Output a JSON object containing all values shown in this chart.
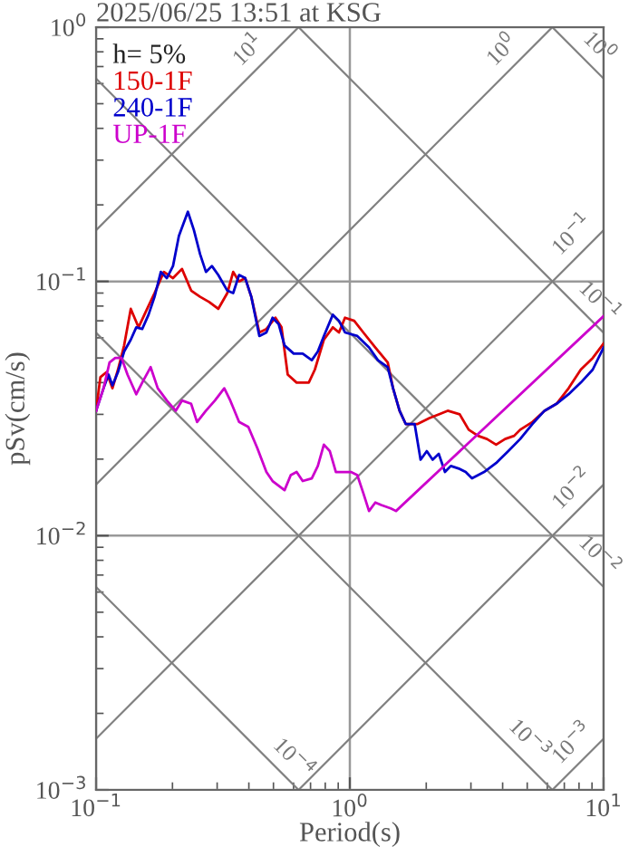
{
  "chart_data": {
    "type": "line",
    "title": "2025/06/25 13:51 at KSG",
    "xlabel": "Period(s)",
    "ylabel": "pSv(cm/s)",
    "legend_title": "h= 5%",
    "legend": "top left",
    "log": "xy",
    "grid": true,
    "xlim": [
      0.1,
      10
    ],
    "ylim": [
      0.001,
      1
    ],
    "xticks": [
      {
        "value": 0.1,
        "label": "10$^{−1}$"
      },
      {
        "value": 1,
        "label": "10$^{0}$"
      },
      {
        "value": 10,
        "label": "10$^{1}$"
      }
    ],
    "yticks": [
      {
        "value": 0.001,
        "label": "10$^{−3}$"
      },
      {
        "value": 0.01,
        "label": "10$^{−2}$"
      },
      {
        "value": 0.1,
        "label": "10$^{−1}$"
      },
      {
        "value": 1,
        "label": "10$^{0}$"
      }
    ],
    "series": [
      {
        "name": "150-1F",
        "color": "#dd0000",
        "x": [
          0.1,
          0.104,
          0.11,
          0.116,
          0.122,
          0.129,
          0.137,
          0.147,
          0.157,
          0.17,
          0.185,
          0.201,
          0.218,
          0.237,
          0.257,
          0.279,
          0.303,
          0.329,
          0.347,
          0.366,
          0.387,
          0.409,
          0.44,
          0.469,
          0.509,
          0.538,
          0.569,
          0.617,
          0.689,
          0.728,
          0.79,
          0.857,
          0.906,
          0.957,
          1.04,
          1.13,
          1.26,
          1.41,
          1.48,
          1.57,
          1.66,
          1.85,
          2.06,
          2.24,
          2.43,
          2.71,
          2.94,
          3.2,
          3.47,
          3.77,
          4.09,
          4.44,
          4.69,
          5.24,
          5.85,
          6.52,
          7.28,
          8.13,
          9.06,
          10
        ],
        "values": [
          0.031,
          0.042,
          0.044,
          0.038,
          0.045,
          0.056,
          0.078,
          0.066,
          0.076,
          0.09,
          0.109,
          0.103,
          0.112,
          0.092,
          0.087,
          0.083,
          0.078,
          0.09,
          0.109,
          0.1,
          0.103,
          0.087,
          0.063,
          0.065,
          0.072,
          0.066,
          0.043,
          0.04,
          0.04,
          0.045,
          0.059,
          0.066,
          0.063,
          0.072,
          0.07,
          0.063,
          0.055,
          0.048,
          0.038,
          0.031,
          0.0275,
          0.0275,
          0.029,
          0.03,
          0.031,
          0.03,
          0.0261,
          0.0247,
          0.024,
          0.0228,
          0.024,
          0.0247,
          0.0261,
          0.028,
          0.031,
          0.033,
          0.038,
          0.045,
          0.05,
          0.057
        ]
      },
      {
        "name": "240-1F",
        "color": "#0000cc",
        "x": [
          0.1,
          0.107,
          0.112,
          0.116,
          0.122,
          0.129,
          0.137,
          0.144,
          0.152,
          0.161,
          0.17,
          0.18,
          0.19,
          0.201,
          0.212,
          0.23,
          0.243,
          0.257,
          0.271,
          0.286,
          0.303,
          0.329,
          0.347,
          0.366,
          0.387,
          0.409,
          0.44,
          0.469,
          0.496,
          0.524,
          0.553,
          0.601,
          0.652,
          0.708,
          0.748,
          0.79,
          0.857,
          0.906,
          0.957,
          1.07,
          1.19,
          1.29,
          1.41,
          1.48,
          1.57,
          1.66,
          1.8,
          1.9,
          2.01,
          2.12,
          2.24,
          2.37,
          2.5,
          2.71,
          2.86,
          3.03,
          3.38,
          3.77,
          4.21,
          4.69,
          5.24,
          5.85,
          6.52,
          7.28,
          8.13,
          9.06,
          10
        ],
        "values": [
          0.031,
          0.038,
          0.043,
          0.039,
          0.044,
          0.053,
          0.059,
          0.066,
          0.065,
          0.074,
          0.087,
          0.109,
          0.103,
          0.115,
          0.151,
          0.188,
          0.159,
          0.128,
          0.109,
          0.115,
          0.106,
          0.092,
          0.09,
          0.106,
          0.103,
          0.087,
          0.061,
          0.063,
          0.072,
          0.068,
          0.056,
          0.052,
          0.052,
          0.049,
          0.053,
          0.061,
          0.074,
          0.07,
          0.063,
          0.061,
          0.055,
          0.049,
          0.046,
          0.038,
          0.031,
          0.0275,
          0.0275,
          0.0199,
          0.0215,
          0.0199,
          0.021,
          0.0178,
          0.0188,
          0.0183,
          0.0178,
          0.0168,
          0.0178,
          0.0193,
          0.0215,
          0.024,
          0.0275,
          0.031,
          0.033,
          0.036,
          0.04,
          0.045,
          0.055
        ]
      },
      {
        "name": "UP-1F",
        "color": "#cc00cc",
        "x": [
          0.1,
          0.107,
          0.113,
          0.119,
          0.126,
          0.133,
          0.144,
          0.152,
          0.164,
          0.175,
          0.19,
          0.206,
          0.218,
          0.237,
          0.25,
          0.271,
          0.294,
          0.32,
          0.338,
          0.366,
          0.398,
          0.432,
          0.469,
          0.496,
          0.553,
          0.585,
          0.617,
          0.652,
          0.708,
          0.748,
          0.79,
          0.834,
          0.881,
          0.931,
          1.01,
          1.07,
          1.13,
          1.19,
          1.26,
          1.33,
          1.45,
          1.52,
          10
        ],
        "values": [
          0.031,
          0.038,
          0.048,
          0.05,
          0.05,
          0.043,
          0.036,
          0.04,
          0.046,
          0.038,
          0.034,
          0.031,
          0.034,
          0.033,
          0.028,
          0.031,
          0.034,
          0.038,
          0.034,
          0.028,
          0.0268,
          0.0221,
          0.0178,
          0.0164,
          0.0151,
          0.0173,
          0.0178,
          0.0164,
          0.0168,
          0.0188,
          0.0228,
          0.0215,
          0.0178,
          0.0178,
          0.0178,
          0.0173,
          0.0147,
          0.0125,
          0.0135,
          0.0132,
          0.0128,
          0.0125,
          0.073
        ]
      },
      {
        "color": "#808080",
        "x": [
          0.1,
          0.628
        ],
        "values": [
          0.159,
          1
        ]
      },
      {
        "color": "#808080",
        "x": [
          0.1,
          6.28
        ],
        "values": [
          0.0159,
          1
        ]
      },
      {
        "color": "#808080",
        "x": [
          0.1,
          10
        ],
        "values": [
          0.00159,
          0.159
        ]
      },
      {
        "color": "#808080",
        "x": [
          0.628,
          10
        ],
        "values": [
          0.001,
          0.0159
        ]
      },
      {
        "color": "#808080",
        "x": [
          6.28,
          10
        ],
        "values": [
          0.001,
          0.00159
        ]
      },
      {
        "color": "#808080",
        "x": [
          6.28,
          10
        ],
        "values": [
          1,
          0.628
        ]
      },
      {
        "color": "#808080",
        "x": [
          0.628,
          10
        ],
        "values": [
          1,
          0.0628
        ]
      },
      {
        "color": "#808080",
        "x": [
          0.1,
          10
        ],
        "values": [
          0.628,
          0.00628
        ]
      },
      {
        "color": "#808080",
        "x": [
          0.1,
          6.28
        ],
        "values": [
          0.0628,
          0.001
        ]
      },
      {
        "color": "#808080",
        "x": [
          0.1,
          0.628
        ],
        "values": [
          0.00628,
          0.001
        ]
      }
    ],
    "annotations": [
      {
        "text": "10$^{1}$",
        "x": 0.45,
        "y": 0.72
      },
      {
        "text": "10$^{0}$",
        "x": 4.5,
        "y": 0.72
      },
      {
        "text": "10$^{−1}$",
        "x": 8.5,
        "y": 0.135
      },
      {
        "text": "10$^{−2}$",
        "x": 8.5,
        "y": 0.0135
      },
      {
        "text": "10$^{−3}$",
        "x": 8.5,
        "y": 0.00135
      },
      {
        "text": "10$^{0}$",
        "x": 8.5,
        "y": 0.74
      },
      {
        "text": "10$^{−1}$",
        "x": 8.5,
        "y": 0.074
      },
      {
        "text": "10$^{−2}$",
        "x": 8.5,
        "y": 0.0074
      },
      {
        "text": "10$^{−3}$",
        "x": 4.5,
        "y": 0.0014
      },
      {
        "text": "10$^{−4}$",
        "x": 0.53,
        "y": 0.00118
      }
    ]
  }
}
